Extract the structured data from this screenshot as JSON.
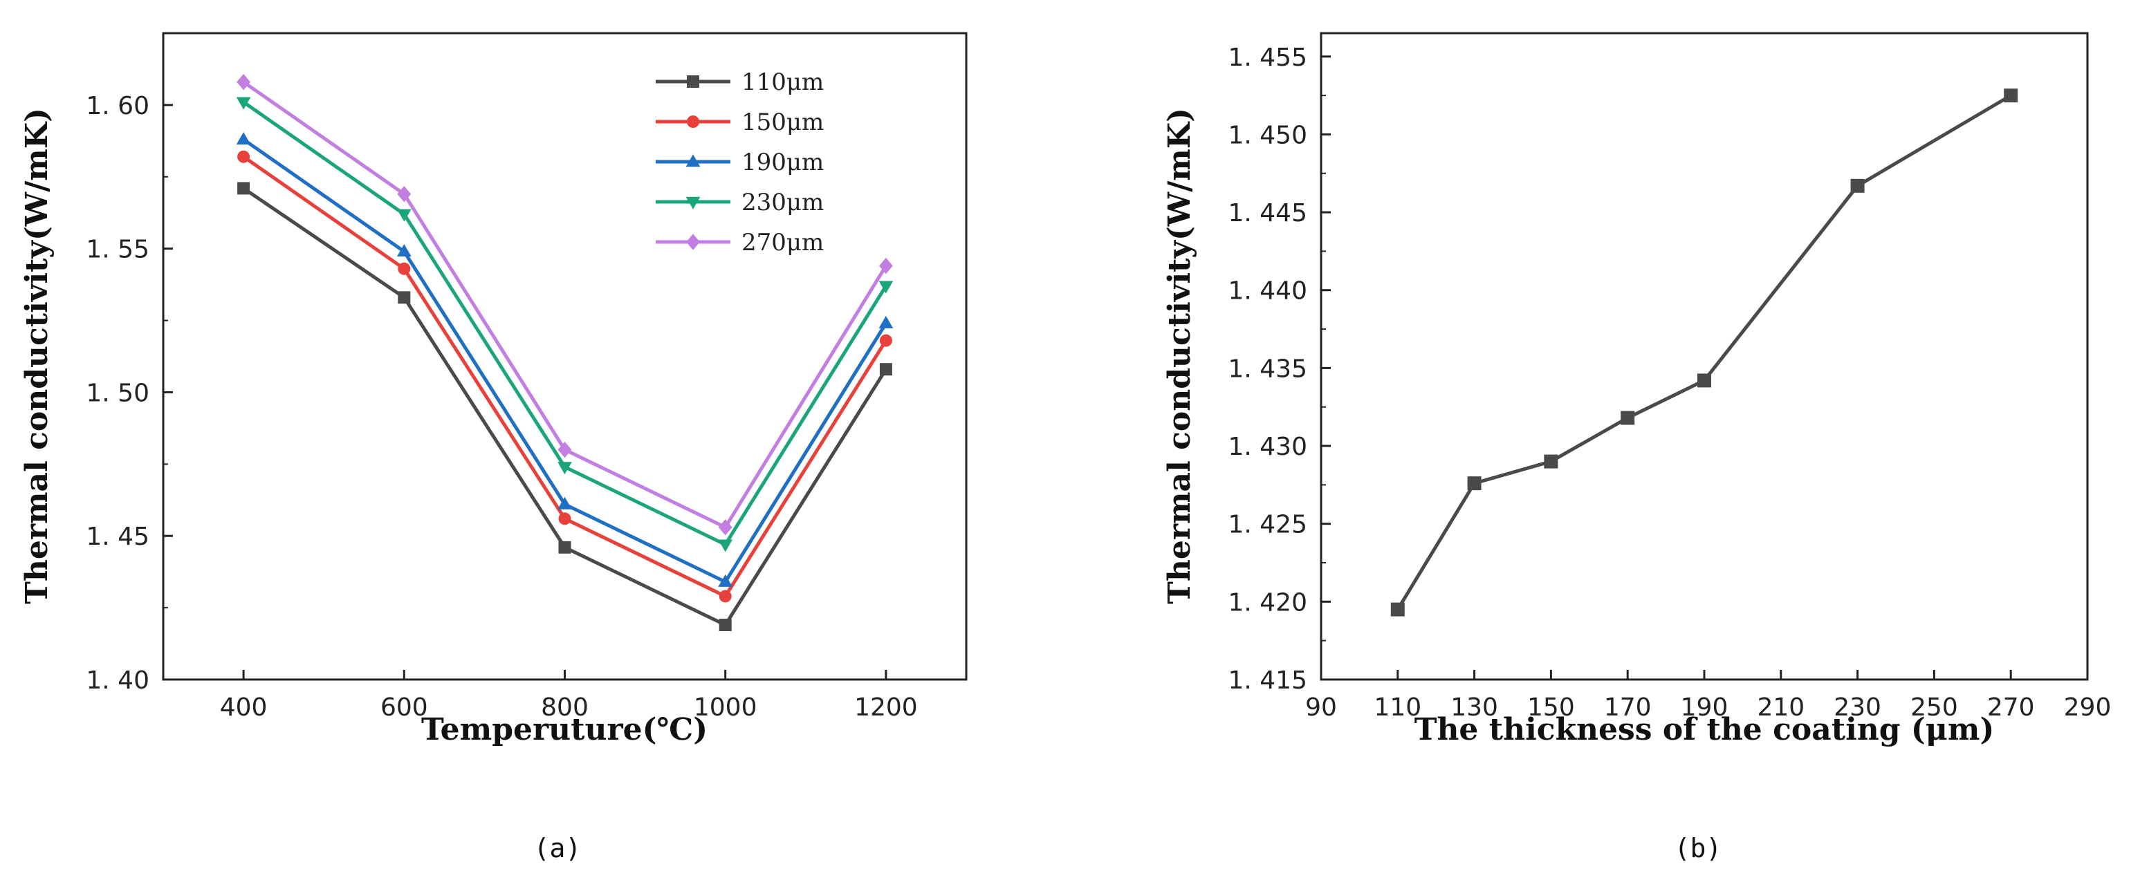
{
  "chart_data": [
    {
      "type": "line",
      "panel_label": "(a)",
      "xlabel": "Temperuture(℃)",
      "ylabel": "Thermal conductivity(W/mK)",
      "xlim": [
        300,
        1300
      ],
      "ylim": [
        1.4,
        1.625
      ],
      "xticks": [
        400,
        600,
        800,
        1000,
        1200
      ],
      "xtick_labels": [
        "400",
        "600",
        "800",
        "1000",
        "1200"
      ],
      "yticks": [
        1.4,
        1.45,
        1.5,
        1.55,
        1.6
      ],
      "ytick_labels": [
        "1. 40",
        "1. 45",
        "1. 50",
        "1. 55",
        "1. 60"
      ],
      "x": [
        400,
        600,
        800,
        1000,
        1200
      ],
      "legend_position": "top-right",
      "series": [
        {
          "name": "110μm",
          "marker": "square",
          "color": "#4a4a4a",
          "values": [
            1.571,
            1.533,
            1.446,
            1.419,
            1.508
          ]
        },
        {
          "name": "150μm",
          "marker": "circle",
          "color": "#e8403a",
          "values": [
            1.582,
            1.543,
            1.456,
            1.429,
            1.518
          ]
        },
        {
          "name": "190μm",
          "marker": "triangle-up",
          "color": "#1f6fc4",
          "values": [
            1.588,
            1.549,
            1.461,
            1.434,
            1.524
          ]
        },
        {
          "name": "230μm",
          "marker": "triangle-down",
          "color": "#1aa57a",
          "values": [
            1.601,
            1.562,
            1.474,
            1.447,
            1.537
          ]
        },
        {
          "name": "270μm",
          "marker": "diamond",
          "color": "#c27ee0",
          "values": [
            1.608,
            1.569,
            1.48,
            1.453,
            1.544
          ]
        }
      ]
    },
    {
      "type": "line",
      "panel_label": "(b)",
      "xlabel": "The thickness of  the coating (μm)",
      "ylabel": "Thermal conductivity(W/mK)",
      "xlim": [
        90,
        290
      ],
      "ylim": [
        1.415,
        1.4565
      ],
      "xticks": [
        90,
        110,
        130,
        150,
        170,
        190,
        210,
        230,
        250,
        270,
        290
      ],
      "xtick_labels": [
        "90",
        "110",
        "130",
        "150",
        "170",
        "190",
        "210",
        "230",
        "250",
        "270",
        "290"
      ],
      "yticks": [
        1.415,
        1.42,
        1.425,
        1.43,
        1.435,
        1.44,
        1.445,
        1.45,
        1.455
      ],
      "ytick_labels": [
        "1. 415",
        "1. 420",
        "1. 425",
        "1. 430",
        "1. 435",
        "1. 440",
        "1. 445",
        "1. 450",
        "1. 455"
      ],
      "series": [
        {
          "name": "thermal conductivity",
          "marker": "square",
          "color": "#4a4a4a",
          "x": [
            110,
            130,
            150,
            170,
            190,
            230,
            270
          ],
          "values": [
            1.4195,
            1.4276,
            1.429,
            1.4318,
            1.4342,
            1.4467,
            1.4525
          ]
        }
      ]
    }
  ]
}
